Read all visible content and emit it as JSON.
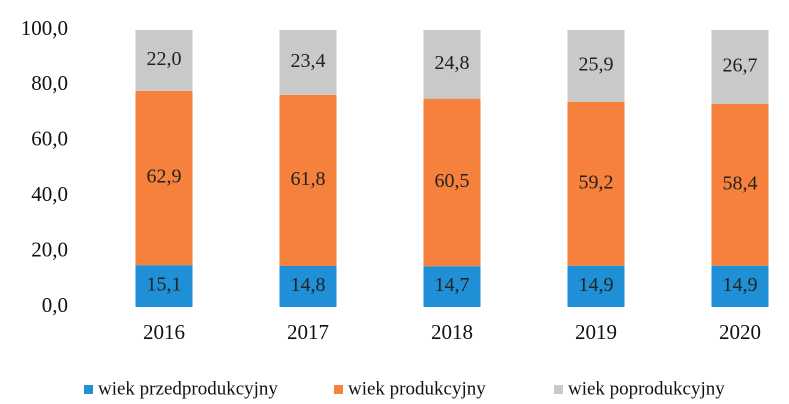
{
  "chart_data": {
    "type": "stacked_bar",
    "categories": [
      "2016",
      "2017",
      "2018",
      "2019",
      "2020"
    ],
    "series": [
      {
        "name": "wiek przedprodukcyjny",
        "color": "#1f8fd6",
        "values": [
          15.1,
          14.8,
          14.7,
          14.9,
          14.9
        ],
        "value_labels": [
          "15,1",
          "14,8",
          "14,7",
          "14,9",
          "14,9"
        ]
      },
      {
        "name": "wiek produkcyjny",
        "color": "#f5813c",
        "values": [
          62.9,
          61.8,
          60.5,
          59.2,
          58.4
        ],
        "value_labels": [
          "62,9",
          "61,8",
          "60,5",
          "59,2",
          "58,4"
        ]
      },
      {
        "name": "wiek poprodukcyjny",
        "color": "#c9c9c9",
        "values": [
          22.0,
          23.4,
          24.8,
          25.9,
          26.7
        ],
        "value_labels": [
          "22,0",
          "23,4",
          "24,8",
          "25,9",
          "26,7"
        ]
      }
    ],
    "ylim": [
      0,
      100
    ],
    "yticks": [
      {
        "value": 0,
        "label": "0,0"
      },
      {
        "value": 20,
        "label": "20,0"
      },
      {
        "value": 40,
        "label": "40,0"
      },
      {
        "value": 60,
        "label": "60,0"
      },
      {
        "value": 80,
        "label": "80,0"
      },
      {
        "value": 100,
        "label": "100,0"
      }
    ],
    "grid": false
  }
}
